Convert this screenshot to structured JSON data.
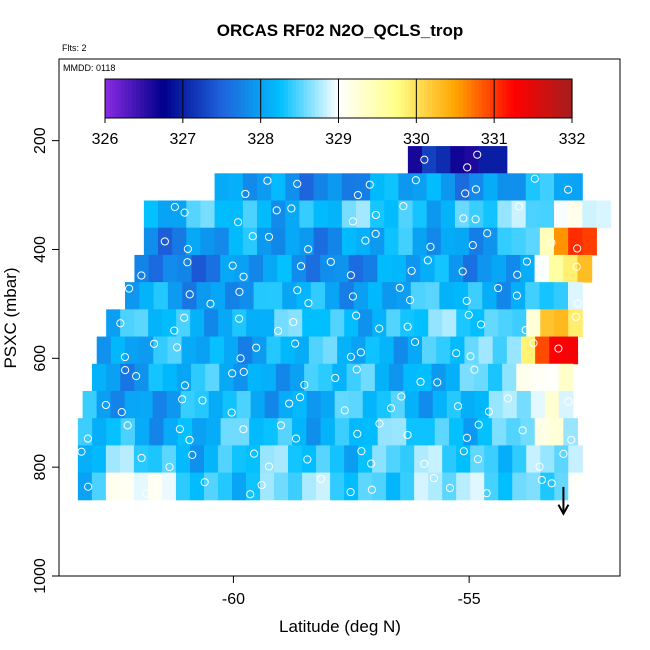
{
  "chart_data": {
    "type": "heatmap",
    "title": "ORCAS RF02 N2O_QCLS_trop",
    "flts_note": "Flts: 2",
    "date_note": "MMDD: 0118",
    "xlabel": "Latitude (deg N)",
    "ylabel": "PSXC (mbar)",
    "xlim": [
      -63.7,
      -51.8
    ],
    "ylim": [
      1000,
      50
    ],
    "x_ticks": [
      -60,
      -55
    ],
    "y_ticks": [
      200,
      400,
      600,
      800,
      1000
    ],
    "grid": false,
    "colorbar": {
      "min": 326,
      "max": 332,
      "ticks": [
        326,
        327,
        328,
        329,
        330,
        331,
        332
      ],
      "stops": [
        "#8a2be2",
        "#00008b",
        "#1e63dc",
        "#00bfff",
        "#ffffff",
        "#ffff88",
        "#ffa500",
        "#ff0000",
        "#a51e1e"
      ]
    },
    "vertical_arrow": {
      "lat": -53.0,
      "from_p": 840,
      "to_p": 880
    },
    "rows": [
      {
        "p0": 210,
        "p1": 260,
        "x0": -56.3,
        "x1": -54.2,
        "base": 326.9
      },
      {
        "p0": 260,
        "p1": 310,
        "x0": -60.4,
        "x1": -52.6,
        "base": 327.9
      },
      {
        "p0": 310,
        "p1": 360,
        "x0": -61.9,
        "x1": -52.0,
        "base": 328.3
      },
      {
        "p0": 360,
        "p1": 410,
        "x0": -61.9,
        "x1": -52.3,
        "base": 328.0
      },
      {
        "p0": 410,
        "p1": 460,
        "x0": -62.1,
        "x1": -52.4,
        "base": 327.9
      },
      {
        "p0": 460,
        "p1": 510,
        "x0": -62.3,
        "x1": -52.6,
        "base": 328.1
      },
      {
        "p0": 510,
        "p1": 560,
        "x0": -62.7,
        "x1": -52.6,
        "base": 328.3
      },
      {
        "p0": 560,
        "p1": 610,
        "x0": -62.9,
        "x1": -52.7,
        "base": 328.2
      },
      {
        "p0": 610,
        "p1": 660,
        "x0": -63.0,
        "x1": -52.8,
        "base": 328.2
      },
      {
        "p0": 660,
        "p1": 710,
        "x0": -63.2,
        "x1": -52.8,
        "base": 328.2
      },
      {
        "p0": 710,
        "p1": 760,
        "x0": -63.3,
        "x1": -52.7,
        "base": 328.3
      },
      {
        "p0": 760,
        "p1": 810,
        "x0": -63.3,
        "x1": -52.6,
        "base": 328.4
      },
      {
        "p0": 810,
        "p1": 860,
        "x0": -63.3,
        "x1": -52.6,
        "base": 328.5
      }
    ]
  }
}
